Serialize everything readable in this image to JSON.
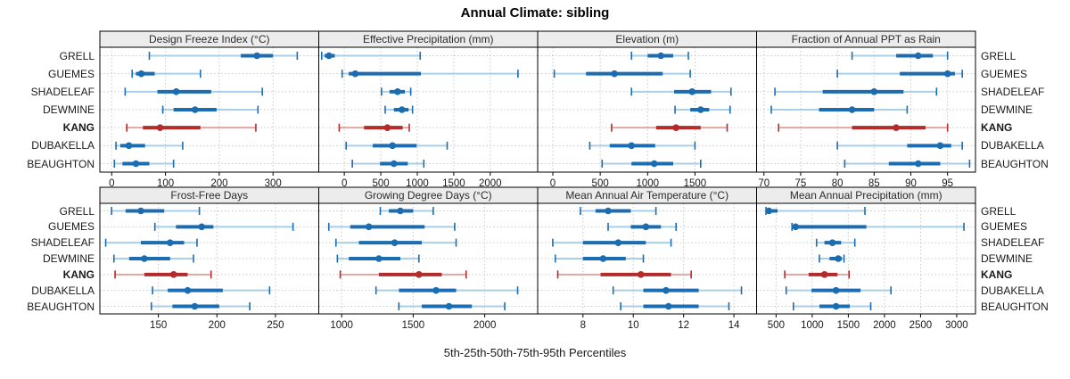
{
  "title": "Annual Climate: sibling",
  "caption": "5th-25th-50th-75th-95th Percentiles",
  "sites": [
    "GRELL",
    "GUEMES",
    "SHADELEAF",
    "DEWMINE",
    "KANG",
    "DUBAKELLA",
    "BEAUGHTON"
  ],
  "highlight_site": "KANG",
  "colors": {
    "blue_dark": "#1B6CB0",
    "blue_light": "#A9CFE7",
    "red_dark": "#B22C2C",
    "red_light": "#E2A7A4",
    "header_bg": "#ECECEC",
    "panel_border": "#000000",
    "grid": "#C9C9C9",
    "tick_text": "#1A1A1A",
    "header_text": "#2B2B2B"
  },
  "chart_data": {
    "type": "percentile-dotplot-grid",
    "grid": [
      2,
      4
    ],
    "percentile_levels": [
      5,
      25,
      50,
      75,
      95
    ],
    "panels": [
      {
        "title": "Design Freeze Index (°C)",
        "xlim": [
          -22,
          385
        ],
        "ticks": [
          0,
          100,
          200,
          300
        ],
        "series": [
          {
            "site": "GRELL",
            "p": [
              70,
              240,
              270,
              300,
              345
            ]
          },
          {
            "site": "GUEMES",
            "p": [
              38,
              45,
              55,
              80,
              165
            ]
          },
          {
            "site": "SHADELEAF",
            "p": [
              25,
              85,
              120,
              185,
              280
            ]
          },
          {
            "site": "DEWMINE",
            "p": [
              95,
              115,
              155,
              195,
              272
            ]
          },
          {
            "site": "KANG",
            "p": [
              28,
              58,
              90,
              165,
              268
            ]
          },
          {
            "site": "DUBAKELLA",
            "p": [
              8,
              16,
              32,
              62,
              132
            ]
          },
          {
            "site": "BEAUGHTON",
            "p": [
              5,
              20,
              45,
              70,
              115
            ]
          }
        ]
      },
      {
        "title": "Effective Precipitation (mm)",
        "xlim": [
          -350,
          2650
        ],
        "ticks": [
          0,
          500,
          1000,
          1500,
          2000
        ],
        "series": [
          {
            "site": "GRELL",
            "p": [
              -310,
              -270,
              -210,
              -130,
              1040
            ]
          },
          {
            "site": "GUEMES",
            "p": [
              -30,
              60,
              150,
              1050,
              2380
            ]
          },
          {
            "site": "SHADELEAF",
            "p": [
              510,
              620,
              730,
              830,
              910
            ]
          },
          {
            "site": "DEWMINE",
            "p": [
              560,
              680,
              790,
              880,
              935
            ]
          },
          {
            "site": "KANG",
            "p": [
              -70,
              270,
              590,
              800,
              890
            ]
          },
          {
            "site": "DUBAKELLA",
            "p": [
              25,
              390,
              660,
              990,
              1410
            ]
          },
          {
            "site": "BEAUGHTON",
            "p": [
              110,
              490,
              680,
              870,
              1090
            ]
          }
        ]
      },
      {
        "title": "Elevation (m)",
        "xlim": [
          -160,
          2150
        ],
        "ticks": [
          0,
          500,
          1000,
          1500
        ],
        "series": [
          {
            "site": "GRELL",
            "p": [
              830,
              1000,
              1140,
              1270,
              1430
            ]
          },
          {
            "site": "GUEMES",
            "p": [
              15,
              350,
              650,
              1160,
              1450
            ]
          },
          {
            "site": "SHADELEAF",
            "p": [
              830,
              1280,
              1470,
              1670,
              1880
            ]
          },
          {
            "site": "DEWMINE",
            "p": [
              1290,
              1450,
              1560,
              1650,
              1870
            ]
          },
          {
            "site": "KANG",
            "p": [
              620,
              1090,
              1300,
              1560,
              1840
            ]
          },
          {
            "site": "DUBAKELLA",
            "p": [
              390,
              600,
              830,
              1080,
              1500
            ]
          },
          {
            "site": "BEAUGHTON",
            "p": [
              520,
              830,
              1070,
              1270,
              1560
            ]
          }
        ]
      },
      {
        "title": "Fraction of Annual PPT as Rain",
        "xlim": [
          69,
          98.8
        ],
        "ticks": [
          70,
          75,
          80,
          85,
          90,
          95
        ],
        "series": [
          {
            "site": "GRELL",
            "p": [
              82,
              88,
              91,
              93,
              95
            ]
          },
          {
            "site": "GUEMES",
            "p": [
              80,
              88.5,
              95,
              96,
              97
            ]
          },
          {
            "site": "SHADELEAF",
            "p": [
              71.5,
              78,
              85,
              89,
              93.5
            ]
          },
          {
            "site": "DEWMINE",
            "p": [
              71,
              77.5,
              82,
              85,
              89.5
            ]
          },
          {
            "site": "KANG",
            "p": [
              72,
              82,
              88,
              92,
              95
            ]
          },
          {
            "site": "DUBAKELLA",
            "p": [
              80,
              89.5,
              94,
              95.5,
              97
            ]
          },
          {
            "site": "BEAUGHTON",
            "p": [
              81,
              87,
              91,
              94,
              98
            ]
          }
        ]
      },
      {
        "title": "Frost-Free Days",
        "xlim": [
          100,
          287
        ],
        "ticks": [
          150,
          200,
          250
        ],
        "series": [
          {
            "site": "GRELL",
            "p": [
              110,
              122,
              135,
              155,
              185
            ]
          },
          {
            "site": "GUEMES",
            "p": [
              147,
              165,
              187,
              197,
              265
            ]
          },
          {
            "site": "SHADELEAF",
            "p": [
              105,
              135,
              160,
              172,
              183
            ]
          },
          {
            "site": "DEWMINE",
            "p": [
              112,
              125,
              138,
              160,
              180
            ]
          },
          {
            "site": "KANG",
            "p": [
              113,
              138,
              163,
              175,
              195
            ]
          },
          {
            "site": "DUBAKELLA",
            "p": [
              145,
              158,
              175,
              205,
              245
            ]
          },
          {
            "site": "BEAUGHTON",
            "p": [
              144,
              162,
              181,
              202,
              228
            ]
          }
        ]
      },
      {
        "title": "Growing Degree Days (°C)",
        "xlim": [
          840,
          2370
        ],
        "ticks": [
          1000,
          1500,
          2000
        ],
        "series": [
          {
            "site": "GRELL",
            "p": [
              1270,
              1330,
              1410,
              1500,
              1640
            ]
          },
          {
            "site": "GUEMES",
            "p": [
              910,
              1060,
              1190,
              1580,
              1790
            ]
          },
          {
            "site": "SHADELEAF",
            "p": [
              960,
              1120,
              1370,
              1560,
              1800
            ]
          },
          {
            "site": "DEWMINE",
            "p": [
              970,
              1050,
              1260,
              1410,
              1540
            ]
          },
          {
            "site": "KANG",
            "p": [
              990,
              1260,
              1540,
              1700,
              1870
            ]
          },
          {
            "site": "DUBAKELLA",
            "p": [
              1240,
              1400,
              1660,
              1800,
              2230
            ]
          },
          {
            "site": "BEAUGHTON",
            "p": [
              1400,
              1560,
              1750,
              1910,
              2140
            ]
          }
        ]
      },
      {
        "title": "Mean Annual Air Temperature (°C)",
        "xlim": [
          6.2,
          14.9
        ],
        "ticks": [
          8,
          10,
          12,
          14
        ],
        "series": [
          {
            "site": "GRELL",
            "p": [
              7.9,
              8.5,
              9.0,
              9.9,
              10.9
            ]
          },
          {
            "site": "GUEMES",
            "p": [
              9.0,
              9.9,
              10.5,
              11.1,
              11.7
            ]
          },
          {
            "site": "SHADELEAF",
            "p": [
              6.8,
              8.0,
              9.4,
              10.5,
              11.5
            ]
          },
          {
            "site": "DEWMINE",
            "p": [
              6.9,
              8.0,
              8.8,
              9.7,
              10.4
            ]
          },
          {
            "site": "KANG",
            "p": [
              7.0,
              8.7,
              10.3,
              11.5,
              12.3
            ]
          },
          {
            "site": "DUBAKELLA",
            "p": [
              9.2,
              10.4,
              11.3,
              12.6,
              14.3
            ]
          },
          {
            "site": "BEAUGHTON",
            "p": [
              9.5,
              10.4,
              11.4,
              12.6,
              13.8
            ]
          }
        ]
      },
      {
        "title": "Mean Annual Precipitation (mm)",
        "xlim": [
          230,
          3260
        ],
        "ticks": [
          500,
          1000,
          1500,
          2000,
          2500,
          3000
        ],
        "series": [
          {
            "site": "GRELL",
            "p": [
              360,
              380,
              400,
              520,
              1730
            ]
          },
          {
            "site": "GUEMES",
            "p": [
              720,
              740,
              770,
              1750,
              3100
            ]
          },
          {
            "site": "SHADELEAF",
            "p": [
              1060,
              1170,
              1280,
              1400,
              1590
            ]
          },
          {
            "site": "DEWMINE",
            "p": [
              1100,
              1240,
              1360,
              1410,
              1440
            ]
          },
          {
            "site": "KANG",
            "p": [
              620,
              950,
              1170,
              1350,
              1510
            ]
          },
          {
            "site": "DUBAKELLA",
            "p": [
              640,
              990,
              1330,
              1670,
              2090
            ]
          },
          {
            "site": "BEAUGHTON",
            "p": [
              740,
              1100,
              1330,
              1520,
              1810
            ]
          }
        ]
      }
    ]
  }
}
